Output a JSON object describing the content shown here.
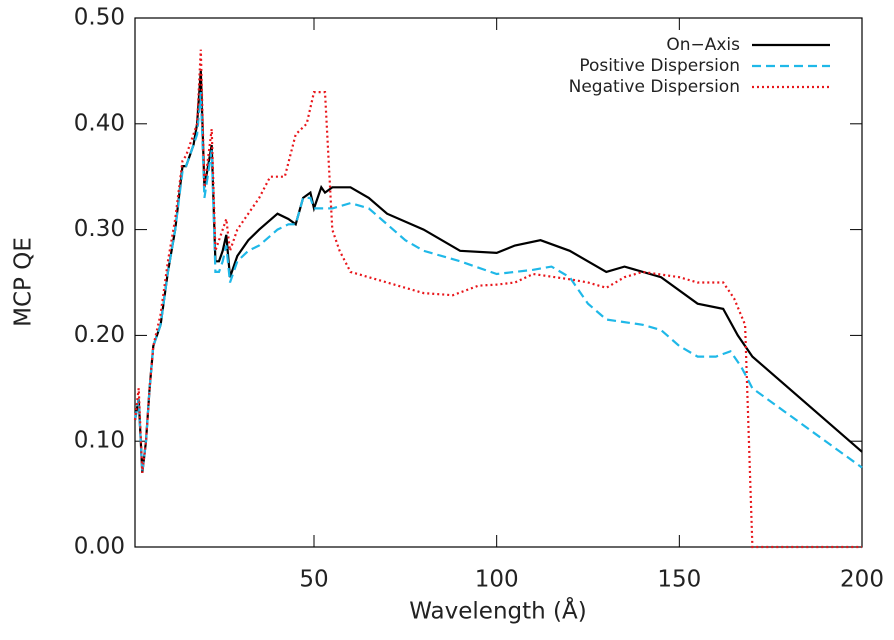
{
  "chart_data": {
    "type": "line",
    "xlabel": "Wavelength (Å)",
    "ylabel": "MCP QE",
    "xlim": [
      1,
      200
    ],
    "ylim": [
      0,
      0.5
    ],
    "xticks": [
      50,
      100,
      150,
      200
    ],
    "yticks": [
      {
        "value": 0,
        "label": "0.00"
      },
      {
        "value": 0.1,
        "label": "0.10"
      },
      {
        "value": 0.2,
        "label": "0.20"
      },
      {
        "value": 0.3,
        "label": "0.30"
      },
      {
        "value": 0.4,
        "label": "0.40"
      },
      {
        "value": 0.5,
        "label": "0.50"
      }
    ],
    "legend": "upper right",
    "series": [
      {
        "name": "On−Axis",
        "color": "#000000",
        "dash": "solid",
        "x": [
          1,
          2,
          3,
          4,
          5,
          6,
          8,
          10,
          12,
          14,
          15,
          17,
          18,
          19,
          20,
          22,
          23,
          24,
          25,
          26,
          27,
          29,
          32,
          35,
          40,
          43,
          45,
          47,
          49,
          50,
          52,
          53,
          55,
          60,
          65,
          70,
          80,
          90,
          100,
          105,
          112,
          120,
          130,
          135,
          145,
          155,
          162,
          166,
          170,
          200
        ],
        "values": [
          0.12,
          0.14,
          0.07,
          0.1,
          0.15,
          0.19,
          0.21,
          0.26,
          0.3,
          0.36,
          0.36,
          0.38,
          0.4,
          0.45,
          0.34,
          0.38,
          0.27,
          0.27,
          0.28,
          0.295,
          0.255,
          0.275,
          0.29,
          0.3,
          0.315,
          0.31,
          0.305,
          0.33,
          0.335,
          0.32,
          0.34,
          0.335,
          0.34,
          0.34,
          0.33,
          0.315,
          0.3,
          0.28,
          0.278,
          0.285,
          0.29,
          0.28,
          0.26,
          0.265,
          0.255,
          0.23,
          0.225,
          0.2,
          0.18,
          0.09
        ]
      },
      {
        "name": "Positive Dispersion",
        "color": "#1fb8e8",
        "dash": "dashed",
        "x": [
          1,
          2,
          3,
          4,
          5,
          6,
          8,
          10,
          12,
          14,
          15,
          17,
          18,
          19,
          20,
          22,
          23,
          24,
          25,
          26,
          27,
          29,
          32,
          35,
          40,
          43,
          45,
          47,
          49,
          50,
          55,
          60,
          65,
          70,
          75,
          80,
          90,
          100,
          110,
          115,
          120,
          125,
          130,
          140,
          145,
          150,
          155,
          160,
          164,
          167,
          170,
          200
        ],
        "values": [
          0.12,
          0.14,
          0.07,
          0.1,
          0.15,
          0.19,
          0.21,
          0.26,
          0.3,
          0.355,
          0.36,
          0.38,
          0.39,
          0.43,
          0.33,
          0.375,
          0.26,
          0.26,
          0.27,
          0.285,
          0.25,
          0.27,
          0.28,
          0.285,
          0.3,
          0.305,
          0.305,
          0.33,
          0.33,
          0.32,
          0.32,
          0.325,
          0.32,
          0.305,
          0.29,
          0.28,
          0.27,
          0.258,
          0.262,
          0.265,
          0.255,
          0.23,
          0.215,
          0.21,
          0.205,
          0.19,
          0.18,
          0.18,
          0.185,
          0.17,
          0.15,
          0.075
        ]
      },
      {
        "name": "Negative Dispersion",
        "color": "#e8161b",
        "dash": "dotted",
        "x": [
          1,
          2,
          3,
          4,
          5,
          6,
          8,
          10,
          12,
          14,
          15,
          17,
          18,
          19,
          20,
          22,
          23,
          24,
          25,
          26,
          27,
          29,
          32,
          35,
          38,
          42,
          45,
          48,
          50,
          53,
          55,
          57,
          60,
          65,
          70,
          75,
          80,
          88,
          95,
          100,
          105,
          110,
          120,
          125,
          130,
          135,
          140,
          150,
          155,
          162,
          165,
          168,
          170,
          200
        ],
        "values": [
          0.12,
          0.15,
          0.07,
          0.1,
          0.15,
          0.19,
          0.22,
          0.27,
          0.31,
          0.365,
          0.37,
          0.39,
          0.4,
          0.47,
          0.34,
          0.395,
          0.28,
          0.29,
          0.3,
          0.31,
          0.28,
          0.3,
          0.315,
          0.33,
          0.35,
          0.35,
          0.39,
          0.4,
          0.43,
          0.43,
          0.3,
          0.28,
          0.26,
          0.255,
          0.25,
          0.245,
          0.24,
          0.238,
          0.247,
          0.248,
          0.25,
          0.258,
          0.253,
          0.25,
          0.245,
          0.255,
          0.26,
          0.255,
          0.25,
          0.25,
          0.235,
          0.21,
          0,
          0
        ]
      }
    ]
  }
}
